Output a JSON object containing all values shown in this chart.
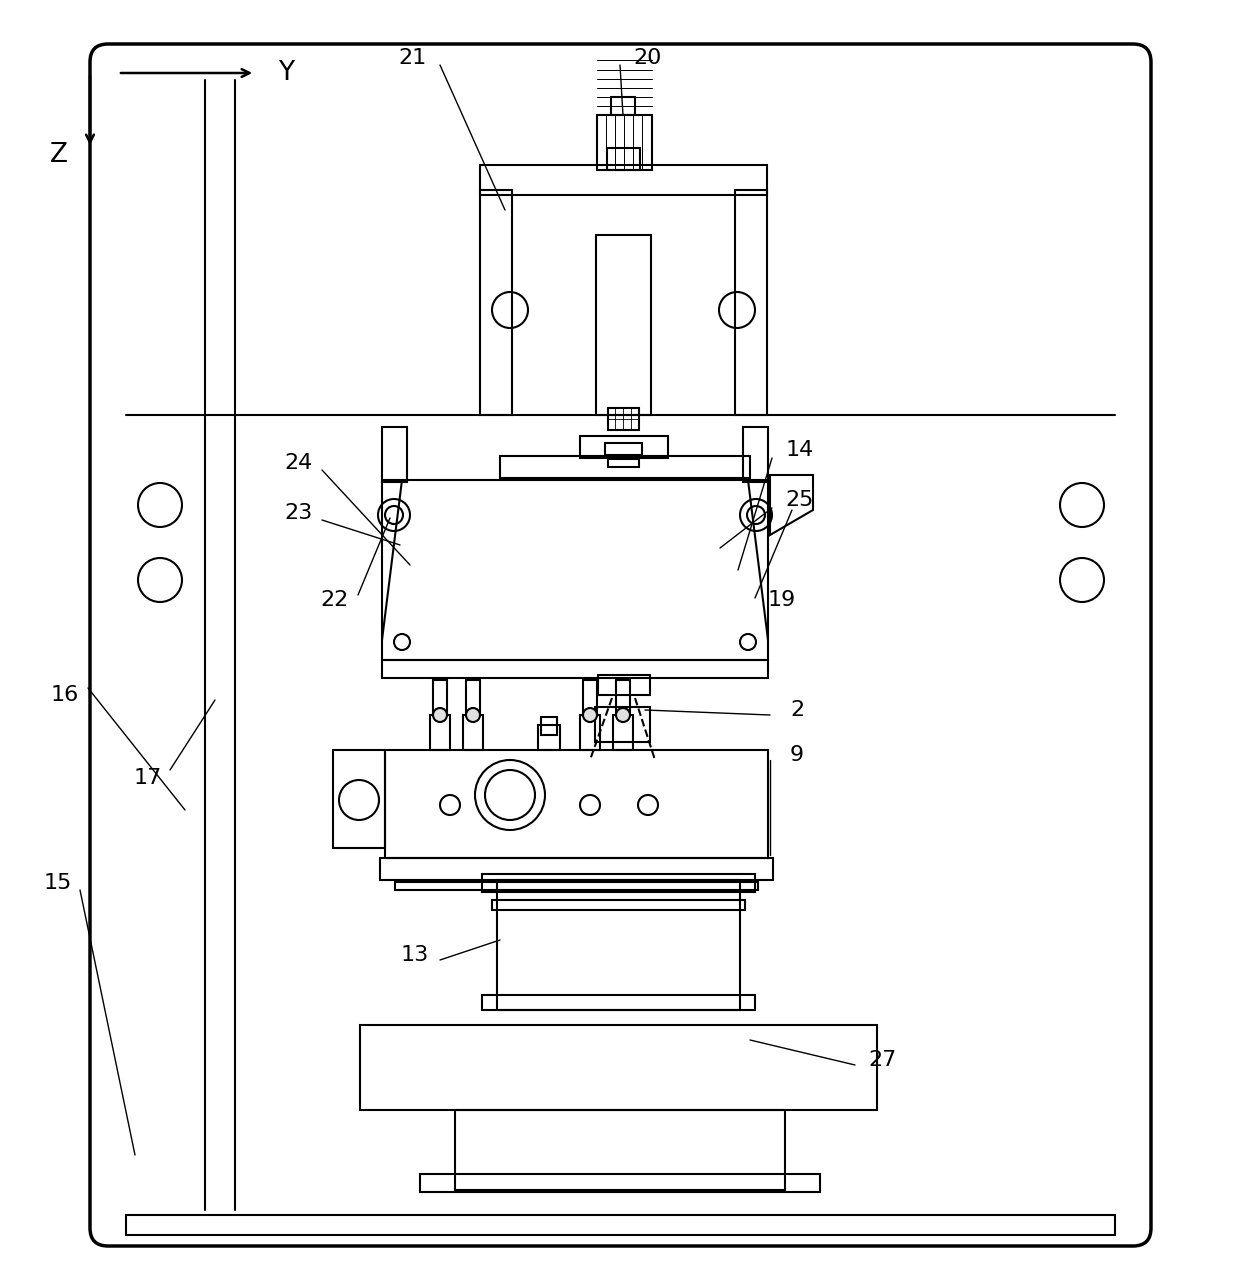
{
  "bg": "#ffffff",
  "lc": "#000000",
  "lw": 1.5,
  "tlw": 2.5
}
